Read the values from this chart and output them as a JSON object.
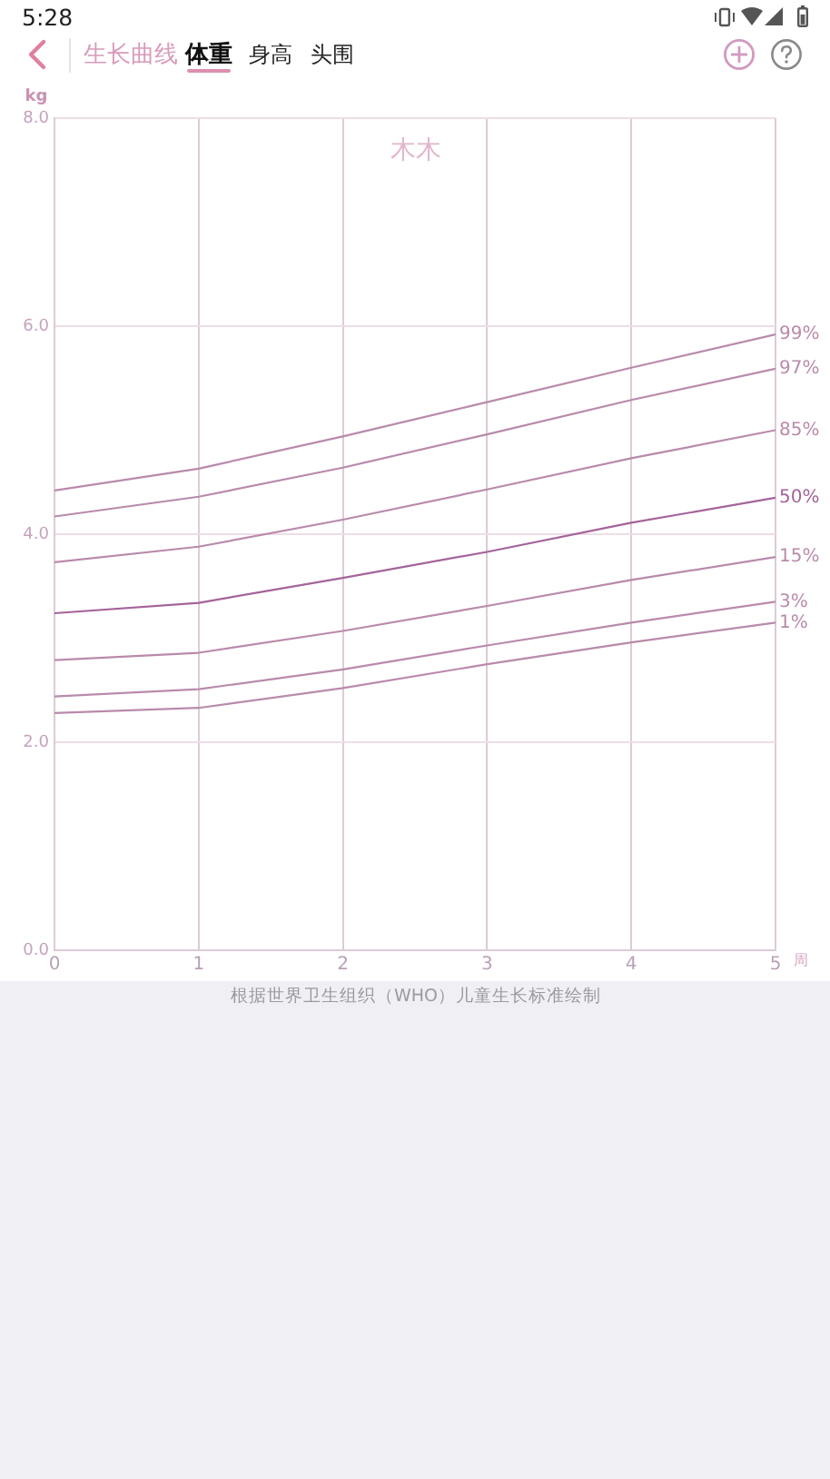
{
  "chart_data": {
    "type": "line",
    "title": "生长曲线",
    "xlabel": "周",
    "ylabel": "kg",
    "annotations": [
      "5:28",
      "体重",
      "身高",
      "头围",
      "木木",
      "根据世界卫生组织（WHO）儿童生长标准绘制"
    ],
    "x": [
      0,
      1,
      2,
      3,
      4,
      5
    ],
    "series": [
      {
        "name": "99%",
        "color": "#b98aab",
        "values": [
          4.42,
          4.63,
          4.94,
          5.27,
          5.6,
          5.92
        ]
      },
      {
        "name": "97%",
        "color": "#b98aab",
        "values": [
          4.17,
          4.36,
          4.64,
          4.96,
          5.29,
          5.59
        ]
      },
      {
        "name": "85%",
        "color": "#b98aab",
        "values": [
          3.73,
          3.88,
          4.14,
          4.43,
          4.73,
          5.0
        ]
      },
      {
        "name": "50%",
        "color": "#a4639a",
        "values": [
          3.24,
          3.34,
          3.58,
          3.83,
          4.11,
          4.35
        ]
      },
      {
        "name": "15%",
        "color": "#b98aab",
        "values": [
          2.79,
          2.86,
          3.07,
          3.31,
          3.56,
          3.78
        ]
      },
      {
        "name": "3%",
        "color": "#b98aab",
        "values": [
          2.44,
          2.51,
          2.7,
          2.93,
          3.15,
          3.35
        ]
      },
      {
        "name": "1%",
        "color": "#b98aab",
        "values": [
          2.28,
          2.33,
          2.52,
          2.75,
          2.96,
          3.15
        ]
      }
    ],
    "xlim": [
      0,
      5
    ],
    "xticks": [
      0,
      1,
      2,
      3,
      4,
      5
    ],
    "ylim": [
      0,
      8
    ],
    "yticks": [
      {
        "value": 0,
        "label": "0.0"
      },
      {
        "value": 2,
        "label": "2.0"
      },
      {
        "value": 4,
        "label": "4.0"
      },
      {
        "value": 6,
        "label": "6.0"
      },
      {
        "value": 8,
        "label": "8.0"
      }
    ],
    "grid": true,
    "legend": false
  }
}
